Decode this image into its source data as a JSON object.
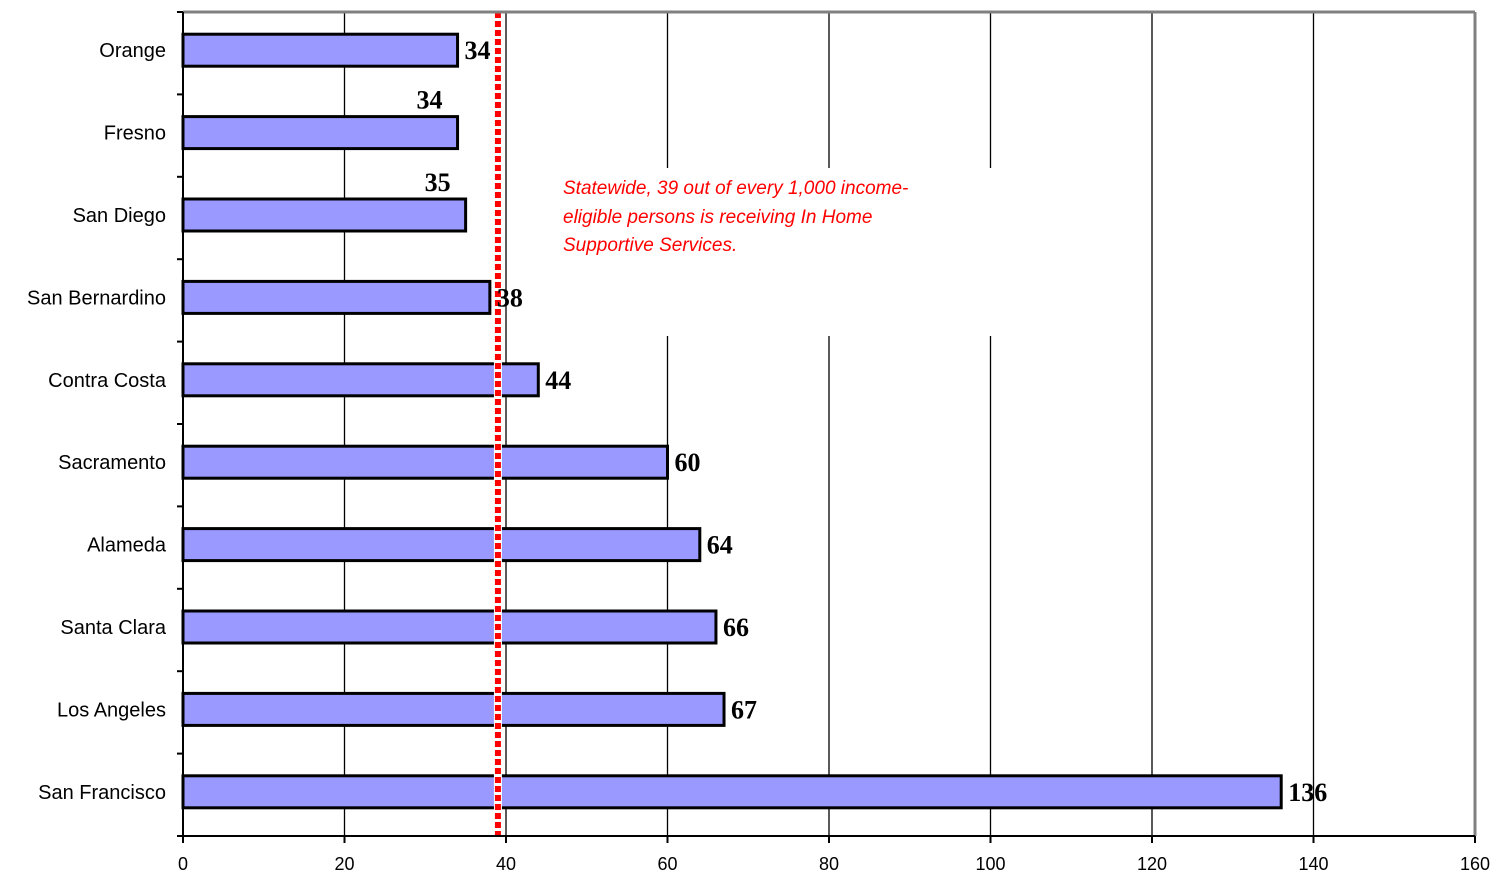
{
  "chart_data": {
    "type": "bar",
    "orientation": "horizontal",
    "categories": [
      "Orange",
      "Fresno",
      "San Diego",
      "San Bernardino",
      "Contra Costa",
      "Sacramento",
      "Alameda",
      "Santa Clara",
      "Los Angeles",
      "San Francisco"
    ],
    "values": [
      34,
      34,
      35,
      38,
      44,
      60,
      64,
      66,
      67,
      136
    ],
    "data_labels": [
      "34",
      "34",
      "35",
      "38",
      "44",
      "60",
      "64",
      "66",
      "67",
      "136"
    ],
    "title": "",
    "xlabel": "",
    "ylabel": "",
    "xlim": [
      0,
      160
    ],
    "x_ticks": [
      "0",
      "20",
      "40",
      "60",
      "80",
      "100",
      "120",
      "140",
      "160"
    ],
    "grid": "vertical",
    "legend": "none",
    "reference_line": {
      "value": 39,
      "style": "dashed",
      "color": "#ff0000"
    },
    "annotation": {
      "lines": [
        "Statewide, 39 out of every 1,000 income-",
        "eligible persons is receiving In Home",
        "Supportive Services."
      ],
      "color": "#ff0000"
    },
    "colors": {
      "bar_fill": "#9999ff",
      "bar_edge": "#000000",
      "grid": "#000000",
      "axis": "#000000",
      "frame": "#808080"
    }
  }
}
